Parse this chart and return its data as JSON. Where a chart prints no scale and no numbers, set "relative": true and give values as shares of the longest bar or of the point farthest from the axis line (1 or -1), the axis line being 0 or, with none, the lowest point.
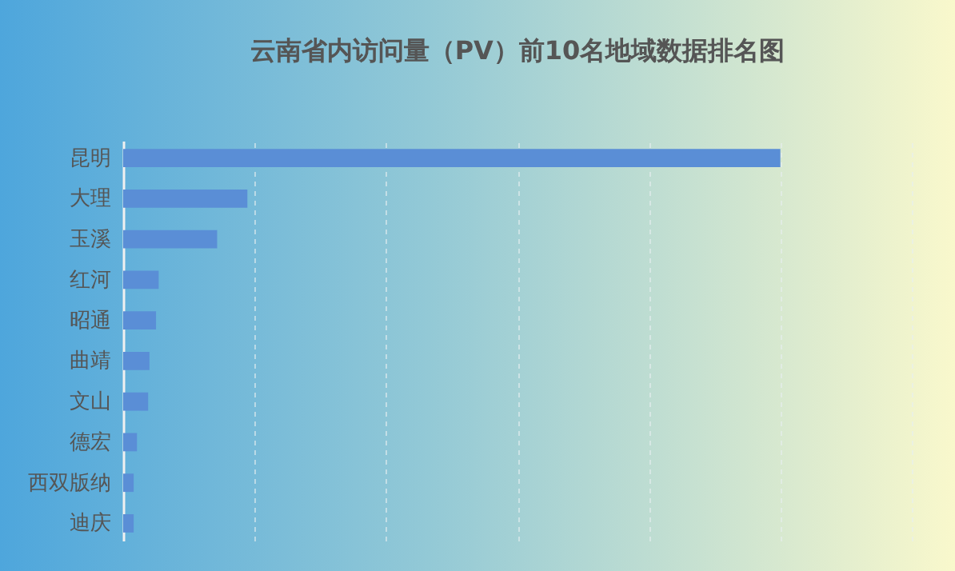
{
  "chart_data": {
    "type": "bar",
    "orientation": "horizontal",
    "relative": true,
    "title": "云南省内访问量（PV）前10名地域数据排名图",
    "categories": [
      "昆明",
      "大理",
      "玉溪",
      "红河",
      "昭通",
      "曲靖",
      "文山",
      "德宏",
      "西双版纳",
      "迪庆"
    ],
    "values": [
      1,
      0.189,
      0.143,
      0.054,
      0.05,
      0.04,
      0.038,
      0.021,
      0.016,
      0.016
    ],
    "color": "#5a8ed6",
    "grid": "x"
  }
}
